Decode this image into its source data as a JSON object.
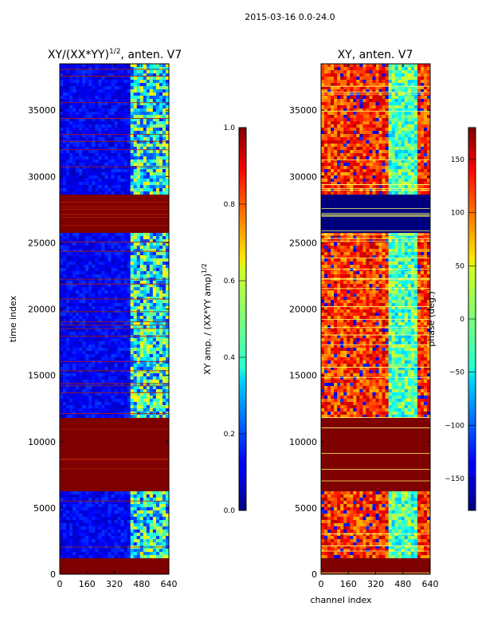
{
  "figure": {
    "suptitle": "2015-03-16 0.0-24.0"
  },
  "chart_data": [
    {
      "type": "heatmap",
      "title_main": "XY/(XX*YY)",
      "title_sup": "1/2",
      "title_rest": ", anten. V7",
      "xlabel": "",
      "ylabel": "time index",
      "xlim": [
        0,
        640
      ],
      "ylim": [
        0,
        38500
      ],
      "xticks": [
        0,
        160,
        320,
        480,
        640
      ],
      "yticks": [
        0,
        5000,
        10000,
        15000,
        20000,
        25000,
        30000,
        35000
      ],
      "colorbar": {
        "label_main": "XY amp. / (XX*YY amp)",
        "label_sup": "1/2",
        "range": [
          0.0,
          1.0
        ],
        "ticks": [
          "0.0",
          "0.2",
          "0.4",
          "0.6",
          "0.8",
          "1.0"
        ],
        "tick_values": [
          0.0,
          0.2,
          0.4,
          0.6,
          0.8,
          1.0
        ]
      },
      "flagged_time_ranges": [
        [
          0,
          1100
        ],
        [
          6300,
          11800
        ],
        [
          25800,
          28700
        ]
      ],
      "bright_channel_range": [
        420,
        640
      ]
    },
    {
      "type": "heatmap",
      "title_main": "XY, anten. V7",
      "xlabel": "channel index",
      "ylabel": "",
      "xlim": [
        0,
        640
      ],
      "ylim": [
        0,
        38500
      ],
      "xticks": [
        0,
        160,
        320,
        480,
        640
      ],
      "yticks": [
        0,
        5000,
        10000,
        15000,
        20000,
        25000,
        30000,
        35000
      ],
      "colorbar": {
        "label": "phase (deg.)",
        "range": [
          -180,
          180
        ],
        "ticks": [
          "150",
          "100",
          "50",
          "0",
          "−50",
          "−100",
          "−150"
        ],
        "tick_values": [
          150,
          100,
          50,
          0,
          -50,
          -100,
          -150
        ]
      },
      "flagged_time_ranges": [
        [
          0,
          1100
        ],
        [
          6300,
          11800
        ],
        [
          25800,
          28700
        ]
      ]
    }
  ],
  "colors": {
    "jet_dark_blue": "#00007f",
    "jet_blue": "#0000ff",
    "jet_cyan": "#00ffff",
    "jet_yellow": "#ffff00",
    "jet_red": "#ff0000",
    "jet_dark_red": "#7f0000"
  }
}
